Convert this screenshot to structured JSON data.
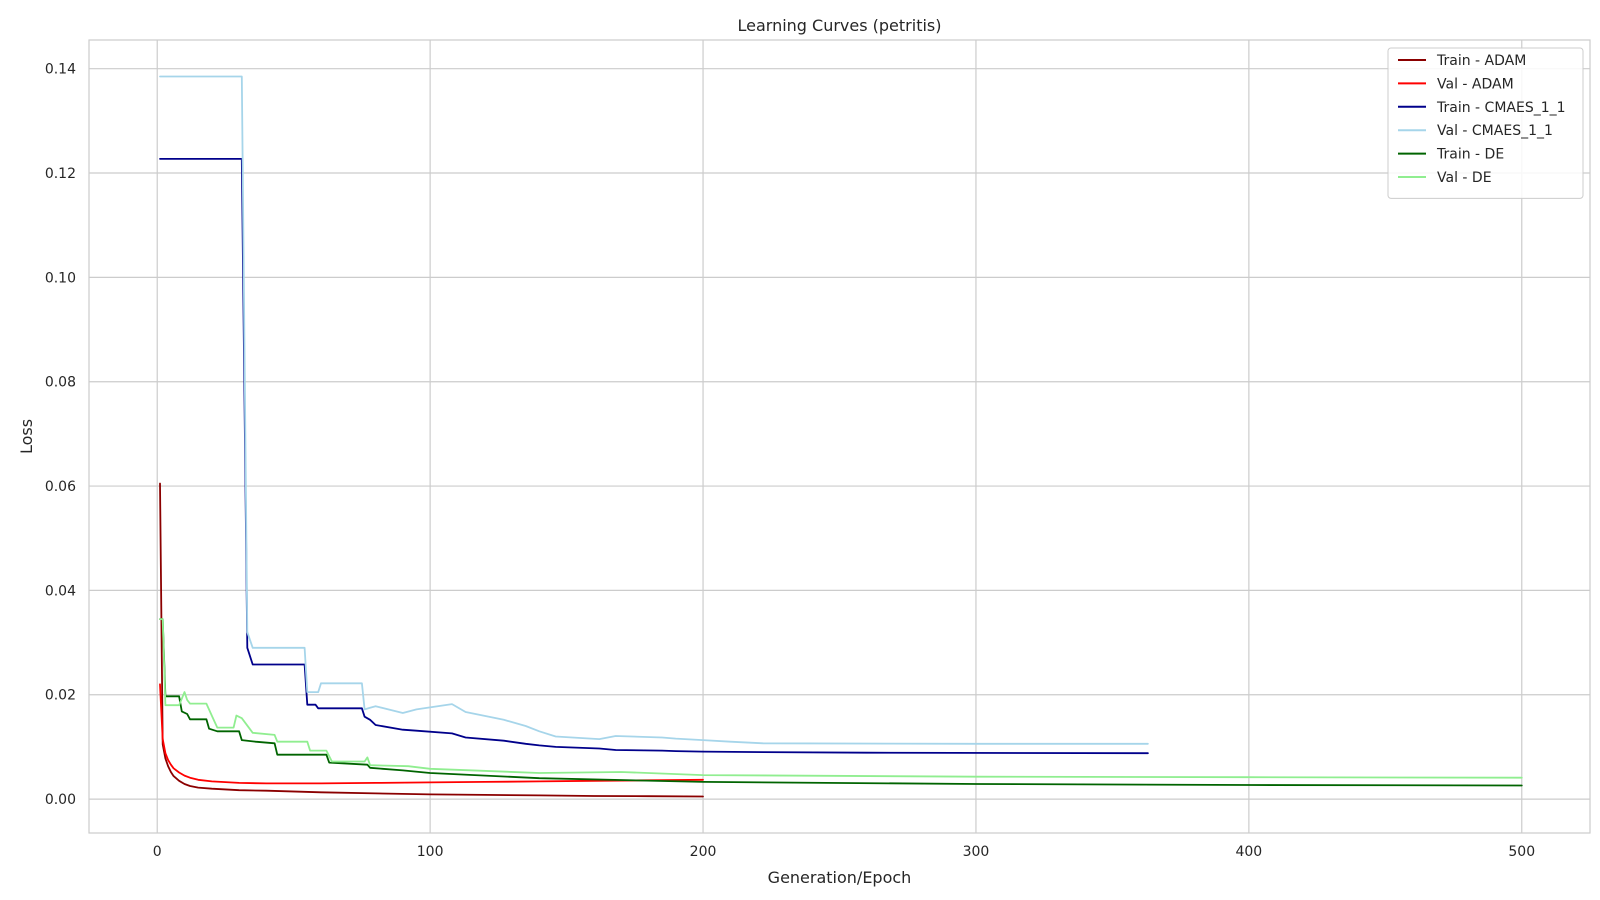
{
  "chart_data": {
    "type": "line",
    "title": "Learning Curves (petritis)",
    "xlabel": "Generation/Epoch",
    "ylabel": "Loss",
    "xlim": [
      -25,
      525
    ],
    "ylim": [
      -0.0065,
      0.1455
    ],
    "xticks": [
      0,
      100,
      200,
      300,
      400,
      500
    ],
    "yticks": [
      0.0,
      0.02,
      0.04,
      0.06,
      0.08,
      0.1,
      0.12,
      0.14
    ],
    "xtick_labels": [
      "0",
      "100",
      "200",
      "300",
      "400",
      "500"
    ],
    "ytick_labels": [
      "0.00",
      "0.02",
      "0.04",
      "0.06",
      "0.08",
      "0.10",
      "0.12",
      "0.14"
    ],
    "grid": true,
    "legend_position": "top-right",
    "series": [
      {
        "name": "Train - ADAM",
        "color": "#8b0000",
        "x": [
          1,
          2,
          3,
          4,
          5,
          6,
          8,
          10,
          12,
          15,
          20,
          30,
          40,
          60,
          80,
          100,
          120,
          140,
          160,
          180,
          200
        ],
        "y": [
          0.0605,
          0.0105,
          0.0078,
          0.0063,
          0.0052,
          0.0044,
          0.0035,
          0.0029,
          0.0025,
          0.0022,
          0.002,
          0.0017,
          0.0016,
          0.0013,
          0.0011,
          0.0009,
          0.0008,
          0.0007,
          0.0006,
          0.00055,
          0.0005
        ]
      },
      {
        "name": "Val - ADAM",
        "color": "#ff0000",
        "x": [
          1,
          2,
          3,
          4,
          5,
          6,
          8,
          10,
          12,
          15,
          20,
          30,
          40,
          60,
          80,
          100,
          120,
          140,
          160,
          180,
          200
        ],
        "y": [
          0.022,
          0.0115,
          0.0088,
          0.0075,
          0.0066,
          0.0059,
          0.0051,
          0.0045,
          0.0041,
          0.0037,
          0.0034,
          0.0031,
          0.003,
          0.003,
          0.0031,
          0.0032,
          0.0033,
          0.0034,
          0.0035,
          0.0036,
          0.0037
        ]
      },
      {
        "name": "Train - CMAES_1_1",
        "color": "#00008b",
        "x": [
          1,
          31,
          33,
          35,
          54,
          55,
          58,
          59,
          75,
          76,
          78,
          80,
          90,
          95,
          108,
          113,
          127,
          135,
          140,
          146,
          162,
          168,
          185,
          190,
          200,
          222,
          260,
          363
        ],
        "y": [
          0.1227,
          0.1227,
          0.029,
          0.0258,
          0.0258,
          0.0181,
          0.0181,
          0.0174,
          0.0174,
          0.0158,
          0.0152,
          0.0142,
          0.0133,
          0.0131,
          0.0126,
          0.0118,
          0.0112,
          0.0106,
          0.0103,
          0.01,
          0.0097,
          0.0094,
          0.0093,
          0.0092,
          0.0091,
          0.009,
          0.0089,
          0.0088
        ]
      },
      {
        "name": "Val - CMAES_1_1",
        "color": "#a6d5ea",
        "x": [
          1,
          31,
          33,
          35,
          54,
          55,
          59,
          60,
          75,
          76,
          78,
          80,
          90,
          95,
          108,
          113,
          127,
          135,
          140,
          146,
          162,
          168,
          185,
          190,
          200,
          210,
          222,
          300,
          363
        ],
        "y": [
          0.1385,
          0.1385,
          0.032,
          0.029,
          0.029,
          0.0205,
          0.0205,
          0.0222,
          0.0222,
          0.0172,
          0.0175,
          0.0178,
          0.0165,
          0.0172,
          0.0182,
          0.0167,
          0.0152,
          0.014,
          0.013,
          0.012,
          0.0115,
          0.0121,
          0.0118,
          0.0116,
          0.0113,
          0.011,
          0.0107,
          0.0106,
          0.0106
        ]
      },
      {
        "name": "Train - DE",
        "color": "#006400",
        "x": [
          1,
          2,
          3,
          8,
          9,
          11,
          12,
          18,
          19,
          22,
          30,
          31,
          36,
          43,
          44,
          62,
          63,
          77,
          78,
          90,
          100,
          140,
          200,
          300,
          400,
          500
        ],
        "y": [
          0.0345,
          0.0345,
          0.0197,
          0.0197,
          0.0168,
          0.0163,
          0.0153,
          0.0153,
          0.0135,
          0.013,
          0.013,
          0.0113,
          0.011,
          0.0107,
          0.0085,
          0.0085,
          0.007,
          0.0066,
          0.006,
          0.0055,
          0.005,
          0.004,
          0.0033,
          0.0029,
          0.0027,
          0.0026
        ]
      },
      {
        "name": "Val - DE",
        "color": "#90ee90",
        "x": [
          1,
          2,
          3,
          8,
          10,
          11,
          12,
          18,
          20,
          22,
          28,
          29,
          31,
          35,
          43,
          44,
          55,
          56,
          62,
          64,
          76,
          77,
          78,
          92,
          100,
          140,
          170,
          200,
          300,
          400,
          500
        ],
        "y": [
          0.0345,
          0.0345,
          0.018,
          0.018,
          0.0205,
          0.019,
          0.0183,
          0.0183,
          0.016,
          0.0137,
          0.0137,
          0.016,
          0.0155,
          0.0127,
          0.0123,
          0.011,
          0.011,
          0.0093,
          0.0093,
          0.0072,
          0.0072,
          0.008,
          0.0065,
          0.0063,
          0.0058,
          0.005,
          0.0052,
          0.0046,
          0.0043,
          0.0042,
          0.0041
        ]
      }
    ]
  }
}
